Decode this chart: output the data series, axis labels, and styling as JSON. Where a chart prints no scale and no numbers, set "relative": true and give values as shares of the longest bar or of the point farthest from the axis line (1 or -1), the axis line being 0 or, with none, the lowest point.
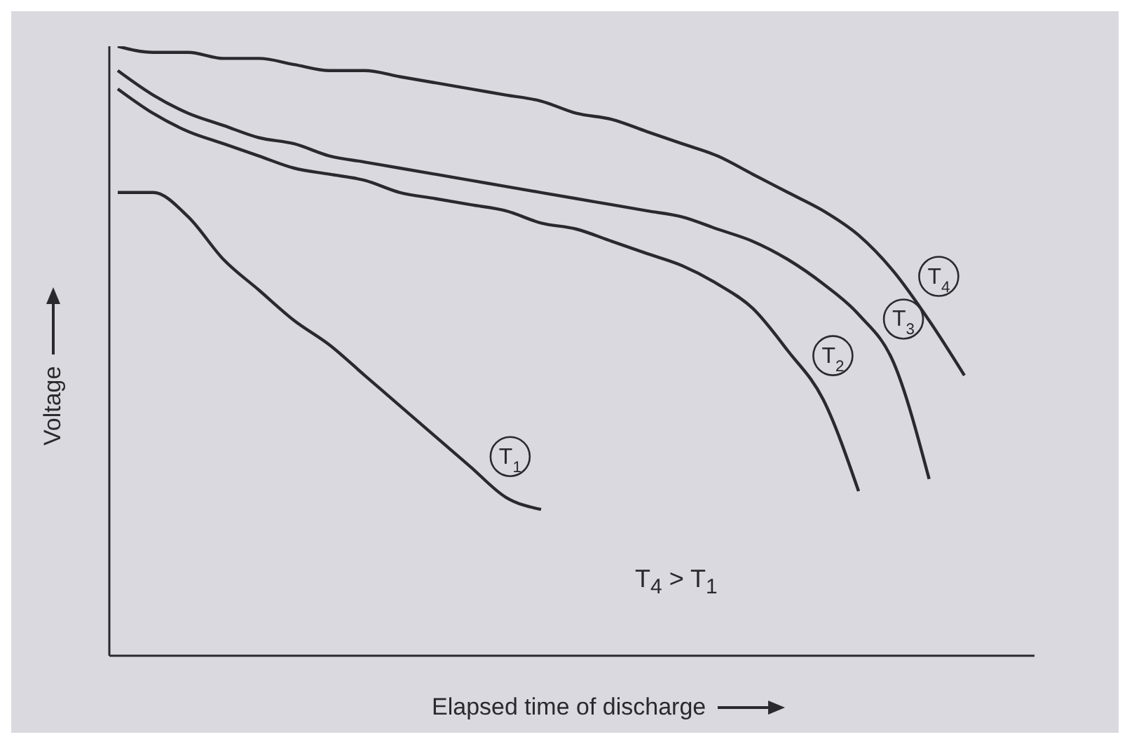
{
  "chart_data": {
    "type": "line",
    "relative": true,
    "xlabel": "Elapsed time of discharge",
    "ylabel": "Voltage",
    "annotations": [
      "T$_{4}$ > T$_{1}$"
    ],
    "grid": false,
    "legend": false,
    "marker": "none",
    "line_style": "solid",
    "categories": [
      null,
      null,
      null,
      null,
      null,
      null,
      null,
      null,
      null,
      null,
      null,
      null,
      null,
      null,
      null,
      null,
      null,
      null,
      null,
      null,
      null,
      null,
      null,
      null,
      null
    ],
    "series": [
      {
        "name": "T$_{1}$",
        "color": "#2a2a2e",
        "values": [
          0.76,
          0.76,
          0.72,
          0.65,
          0.6,
          0.55,
          0.51,
          0.46,
          0.41,
          0.36,
          0.31,
          0.26,
          0.24,
          null,
          null,
          null,
          null,
          null,
          null,
          null,
          null,
          null,
          null,
          null,
          null
        ]
      },
      {
        "name": "T$_{2}$",
        "color": "#2a2a2e",
        "values": [
          0.93,
          0.89,
          0.86,
          0.84,
          0.82,
          0.8,
          0.79,
          0.78,
          0.76,
          0.75,
          0.74,
          0.73,
          0.71,
          0.7,
          0.68,
          0.66,
          0.64,
          0.61,
          0.57,
          0.5,
          0.42,
          0.27,
          null,
          null,
          null
        ]
      },
      {
        "name": "T$_{3}$",
        "color": "#2a2a2e",
        "values": [
          0.96,
          0.92,
          0.89,
          0.87,
          0.85,
          0.84,
          0.82,
          0.81,
          0.8,
          0.79,
          0.78,
          0.77,
          0.76,
          0.75,
          0.74,
          0.73,
          0.72,
          0.7,
          0.68,
          0.65,
          0.61,
          0.56,
          0.48,
          0.29,
          null
        ]
      },
      {
        "name": "T$_{4}$",
        "color": "#2a2a2e",
        "values": [
          1.0,
          0.99,
          0.99,
          0.98,
          0.98,
          0.97,
          0.96,
          0.96,
          0.95,
          0.94,
          0.93,
          0.92,
          0.91,
          0.89,
          0.88,
          0.86,
          0.84,
          0.82,
          0.79,
          0.76,
          0.73,
          0.69,
          0.63,
          0.55,
          0.46
        ]
      }
    ]
  }
}
